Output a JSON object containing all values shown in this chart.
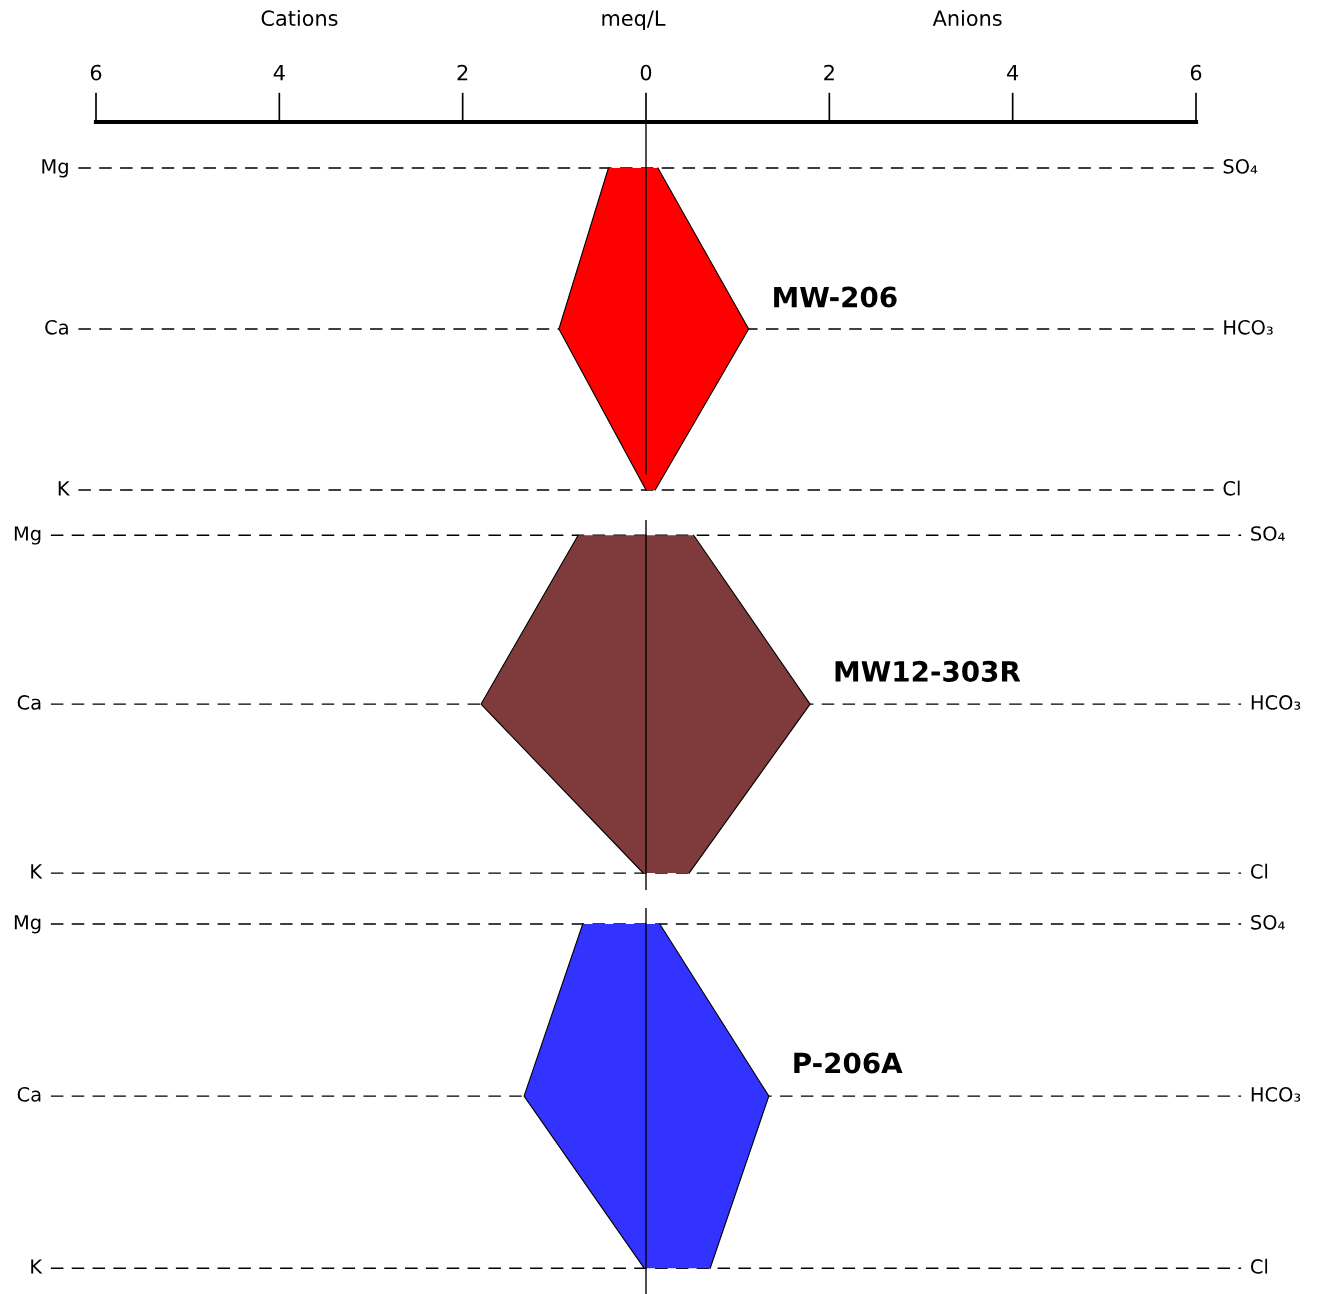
{
  "chart_data": [
    {
      "type": "area",
      "orientation": "horizontal",
      "xlabel": "meq/L",
      "annotations": [
        "Cations",
        "Anions"
      ],
      "xlim": [
        -6,
        6
      ],
      "xticks": [
        {
          "value": -6,
          "label": "6"
        },
        {
          "value": -4,
          "label": "4"
        },
        {
          "value": -2,
          "label": "2"
        },
        0,
        2,
        4,
        6
      ],
      "tick_labels": "x",
      "categories": [
        "Mg",
        "Ca",
        "K"
      ],
      "y2_categories": [
        "SO₄",
        "HCO₃",
        "Cl"
      ],
      "grid": "y",
      "line_style": "dashed",
      "legend": false,
      "ref_lines": [
        {
          "axis": "x",
          "value": 0
        }
      ],
      "series": [
        {
          "color": "#ff0000",
          "values": [
            -0.41,
            -0.95,
            0.0
          ]
        },
        {
          "name": "MW-206",
          "color": "#ff0000",
          "values": [
            0.13,
            1.12,
            0.1
          ]
        }
      ]
    },
    {
      "type": "area",
      "orientation": "horizontal",
      "xlim": [
        -6,
        6
      ],
      "tick_labels": false,
      "categories": [
        "Mg",
        "Ca",
        "K"
      ],
      "y2_categories": [
        "SO₄",
        "HCO₃",
        "Cl"
      ],
      "grid": "y",
      "line_style": "dashed",
      "legend": false,
      "ref_lines": [
        {
          "axis": "x",
          "value": 0
        }
      ],
      "series": [
        {
          "color": "#7f3b3b",
          "values": [
            -0.74,
            -1.8,
            -0.03
          ]
        },
        {
          "name": "MW12-303R",
          "color": "#7f3b3b",
          "values": [
            0.52,
            1.79,
            0.47
          ]
        }
      ]
    },
    {
      "type": "area",
      "orientation": "horizontal",
      "xlim": [
        -6,
        6
      ],
      "tick_labels": false,
      "categories": [
        "Mg",
        "Ca",
        "K"
      ],
      "y2_categories": [
        "SO₄",
        "HCO₃",
        "Cl"
      ],
      "grid": "y",
      "line_style": "dashed",
      "legend": false,
      "ref_lines": [
        {
          "axis": "x",
          "value": 0
        }
      ],
      "series": [
        {
          "color": "#3333ff",
          "values": [
            -0.69,
            -1.33,
            -0.02
          ]
        },
        {
          "name": "P-206A",
          "color": "#3333ff",
          "values": [
            0.15,
            1.34,
            0.7
          ]
        }
      ]
    }
  ]
}
